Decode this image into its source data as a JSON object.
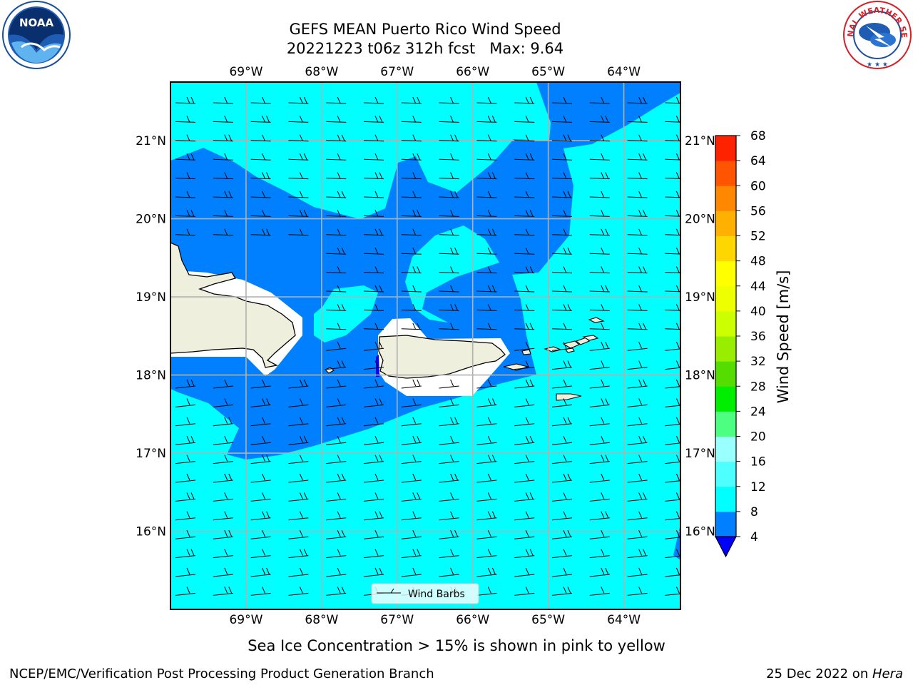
{
  "header": {
    "title_line1": "GEFS MEAN Puerto Rico Wind Speed",
    "title_line2": "20221223 t06z 312h fcst   Max: 9.64",
    "left_logo": "noaa-logo",
    "left_logo_text": "NOAA",
    "right_logo": "national-weather-service-logo",
    "right_logo_text": "NATIONAL WEATHER SERVICE"
  },
  "map": {
    "lon_labels": [
      "69°W",
      "68°W",
      "67°W",
      "66°W",
      "65°W",
      "64°W"
    ],
    "lon_values": [
      -69,
      -68,
      -67,
      -66,
      -65,
      -64
    ],
    "lat_labels": [
      "21°N",
      "20°N",
      "19°N",
      "18°N",
      "17°N",
      "16°N"
    ],
    "lat_values": [
      21,
      20,
      19,
      18,
      17,
      16
    ],
    "lon_range": [
      -70,
      -63.25
    ],
    "lat_range": [
      15,
      21.75
    ],
    "land_color": "#efefdd",
    "legend_label": "Wind Barbs",
    "colors": {
      "band_4_8": "#0080ff",
      "band_8_12": "#00ffff",
      "below_4": "#0000ff"
    }
  },
  "colorbar": {
    "label": "Wind Speed [m/s]",
    "ticks": [
      "4",
      "8",
      "12",
      "16",
      "20",
      "24",
      "28",
      "32",
      "36",
      "40",
      "44",
      "48",
      "52",
      "56",
      "60",
      "64",
      "68"
    ],
    "colors": [
      "#0080ff",
      "#00ffff",
      "#4dffff",
      "#99ffff",
      "#4dff80",
      "#00ee00",
      "#55dd00",
      "#99ee00",
      "#ccff00",
      "#eeff00",
      "#ffff00",
      "#ffd700",
      "#ffb000",
      "#ff8800",
      "#ff5500",
      "#ff2200"
    ],
    "under_color": "#0000ff"
  },
  "caption": "Sea Ice Concentration > 15% is shown in pink to yellow",
  "footer": {
    "left": "NCEP/EMC/Verification Post Processing Product Generation Branch",
    "right_prefix": "25 Dec 2022 on ",
    "right_host": "Hera"
  }
}
